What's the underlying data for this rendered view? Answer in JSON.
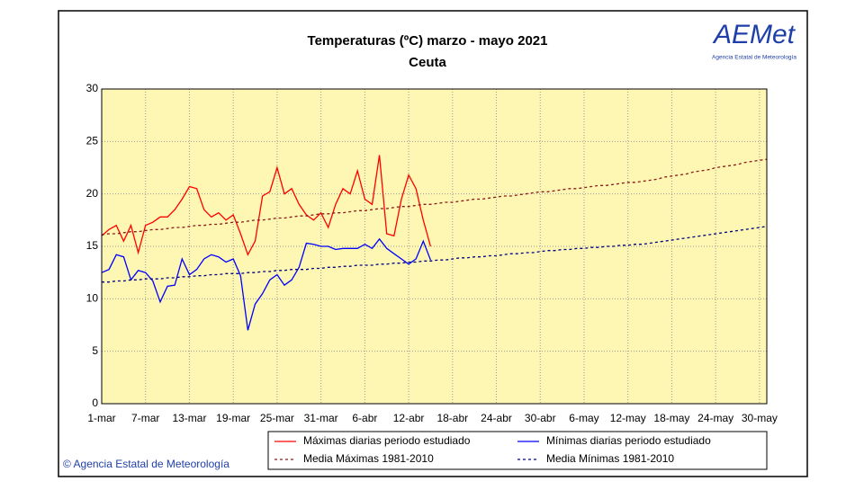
{
  "chart_data": {
    "type": "line",
    "title": "Temperaturas (ºC) marzo - mayo 2021",
    "subtitle": "Ceuta",
    "logo": "AEMet",
    "logo_caption": "Agencia Estatal de Meteorología",
    "footer": "© Agencia Estatal de Meteorología",
    "categories": [
      "1-mar",
      null,
      null,
      null,
      null,
      null,
      "7-mar",
      null,
      null,
      null,
      null,
      null,
      "13-mar",
      null,
      null,
      null,
      null,
      null,
      "19-mar",
      null,
      null,
      null,
      null,
      null,
      "25-mar",
      null,
      null,
      null,
      null,
      null,
      "31-mar",
      null,
      null,
      null,
      null,
      null,
      "6-abr",
      null,
      null,
      null,
      null,
      null,
      "12-abr",
      null,
      null,
      null,
      null,
      null,
      "18-abr",
      null,
      null,
      null,
      null,
      null,
      "24-abr",
      null,
      null,
      null,
      null,
      null,
      "30-abr",
      null,
      null,
      null,
      null,
      null,
      "6-may",
      null,
      null,
      null,
      null,
      null,
      "12-may",
      null,
      null,
      null,
      null,
      null,
      "18-may",
      null,
      null,
      null,
      null,
      null,
      "24-may",
      null,
      null,
      null,
      null,
      null,
      "30-may",
      null
    ],
    "ylim": [
      0,
      30
    ],
    "yticks": [
      0,
      5,
      10,
      15,
      20,
      25,
      30
    ],
    "grid": true,
    "series": [
      {
        "name": "Máximas diarias periodo estudiado",
        "color": "#ff0000",
        "dash": false,
        "values": [
          16.0,
          16.6,
          17.0,
          15.5,
          17.0,
          14.4,
          17.0,
          17.3,
          17.8,
          17.8,
          18.5,
          19.5,
          20.7,
          20.5,
          18.5,
          17.8,
          18.2,
          17.5,
          18.0,
          16.2,
          14.2,
          15.5,
          19.8,
          20.2,
          22.5,
          20.0,
          20.5,
          19.0,
          18.0,
          17.5,
          18.2,
          16.8,
          19.0,
          20.5,
          20.0,
          22.2,
          19.5,
          19.0,
          23.7,
          16.2,
          16.0,
          19.5,
          21.8,
          20.5,
          17.5,
          15.0,
          null,
          null,
          null,
          null,
          null,
          null,
          null,
          null,
          null,
          null,
          null,
          null,
          null,
          null,
          null,
          null,
          null,
          null,
          null,
          null,
          null,
          null,
          null,
          null,
          null,
          null,
          null,
          null,
          null,
          null,
          null,
          null,
          null,
          null,
          null,
          null,
          null,
          null,
          null,
          null,
          null,
          null,
          null,
          null,
          null,
          null
        ]
      },
      {
        "name": "Mínimas diarias periodo estudiado",
        "color": "#0000ff",
        "dash": false,
        "values": [
          12.5,
          12.8,
          14.2,
          14.0,
          11.8,
          12.7,
          12.5,
          11.7,
          9.7,
          11.2,
          11.3,
          13.8,
          12.3,
          12.8,
          13.8,
          14.2,
          14.0,
          13.5,
          13.8,
          12.2,
          7.0,
          9.5,
          10.5,
          11.8,
          12.3,
          11.3,
          11.8,
          13.0,
          15.3,
          15.2,
          15.0,
          15.0,
          14.7,
          14.8,
          14.8,
          14.8,
          15.2,
          14.8,
          15.7,
          14.8,
          14.3,
          13.8,
          13.3,
          13.8,
          15.5,
          13.7,
          null,
          null,
          null,
          null,
          null,
          null,
          null,
          null,
          null,
          null,
          null,
          null,
          null,
          null,
          null,
          null,
          null,
          null,
          null,
          null,
          null,
          null,
          null,
          null,
          null,
          null,
          null,
          null,
          null,
          null,
          null,
          null,
          null,
          null,
          null,
          null,
          null,
          null,
          null,
          null,
          null,
          null,
          null,
          null,
          null,
          null
        ]
      },
      {
        "name": "Media Máximas 1981-2010",
        "color": "#8b1a1a",
        "dash": true,
        "values": [
          16.1,
          16.2,
          16.2,
          16.3,
          16.4,
          16.4,
          16.5,
          16.6,
          16.6,
          16.7,
          16.8,
          16.8,
          16.9,
          17.0,
          17.0,
          17.1,
          17.1,
          17.2,
          17.3,
          17.3,
          17.4,
          17.5,
          17.5,
          17.6,
          17.7,
          17.7,
          17.8,
          17.9,
          17.9,
          18.0,
          18.1,
          18.1,
          18.2,
          18.2,
          18.3,
          18.4,
          18.4,
          18.5,
          18.6,
          18.6,
          18.7,
          18.8,
          18.8,
          18.9,
          19.0,
          19.0,
          19.1,
          19.2,
          19.2,
          19.3,
          19.4,
          19.5,
          19.5,
          19.6,
          19.7,
          19.8,
          19.8,
          19.9,
          20.0,
          20.1,
          20.2,
          20.2,
          20.3,
          20.4,
          20.5,
          20.5,
          20.6,
          20.7,
          20.8,
          20.8,
          20.9,
          21.0,
          21.1,
          21.1,
          21.2,
          21.3,
          21.4,
          21.6,
          21.7,
          21.8,
          21.9,
          22.1,
          22.2,
          22.3,
          22.5,
          22.6,
          22.7,
          22.8,
          23.0,
          23.1,
          23.2,
          23.3
        ]
      },
      {
        "name": "Media Mínimas 1981-2010",
        "color": "#000080",
        "dash": true,
        "values": [
          11.6,
          11.6,
          11.7,
          11.7,
          11.8,
          11.8,
          11.9,
          11.9,
          11.9,
          12.0,
          12.0,
          12.1,
          12.1,
          12.2,
          12.2,
          12.3,
          12.3,
          12.4,
          12.4,
          12.4,
          12.5,
          12.5,
          12.6,
          12.6,
          12.7,
          12.7,
          12.8,
          12.8,
          12.8,
          12.9,
          12.9,
          13.0,
          13.0,
          13.1,
          13.1,
          13.2,
          13.2,
          13.2,
          13.3,
          13.3,
          13.4,
          13.4,
          13.5,
          13.5,
          13.6,
          13.6,
          13.7,
          13.7,
          13.8,
          13.9,
          13.9,
          14.0,
          14.0,
          14.1,
          14.1,
          14.2,
          14.3,
          14.3,
          14.4,
          14.4,
          14.5,
          14.6,
          14.6,
          14.7,
          14.7,
          14.8,
          14.8,
          14.9,
          14.9,
          15.0,
          15.0,
          15.1,
          15.1,
          15.2,
          15.2,
          15.3,
          15.4,
          15.5,
          15.6,
          15.7,
          15.8,
          15.9,
          16.0,
          16.1,
          16.2,
          16.3,
          16.4,
          16.5,
          16.6,
          16.7,
          16.8,
          16.9
        ]
      }
    ]
  }
}
